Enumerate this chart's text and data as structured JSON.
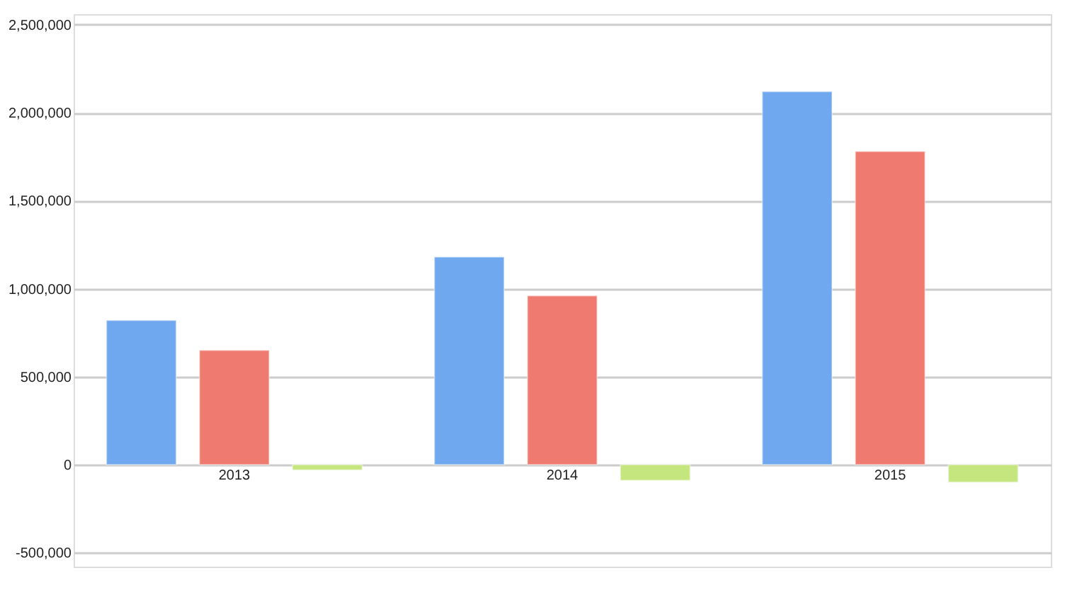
{
  "chart_data": {
    "type": "bar",
    "categories": [
      "2013",
      "2014",
      "2015"
    ],
    "series": [
      {
        "color": "#6fa8ee",
        "values": [
          820000,
          1180000,
          2120000
        ]
      },
      {
        "color": "#ef7b70",
        "values": [
          650000,
          960000,
          1780000
        ]
      },
      {
        "color": "#c5e67f",
        "values": [
          -30000,
          -90000,
          -100000
        ]
      }
    ],
    "ylim": [
      -580000,
      2560000
    ],
    "yticks": [
      {
        "value": -500000,
        "label": "-500,000"
      },
      {
        "value": 0,
        "label": "0"
      },
      {
        "value": 500000,
        "label": "500,000"
      },
      {
        "value": 1000000,
        "label": "1,000,000"
      },
      {
        "value": 1500000,
        "label": "1,500,000"
      },
      {
        "value": 2000000,
        "label": "2,000,000"
      },
      {
        "value": 2500000,
        "label": "2,500,000"
      }
    ],
    "grid": "y"
  }
}
